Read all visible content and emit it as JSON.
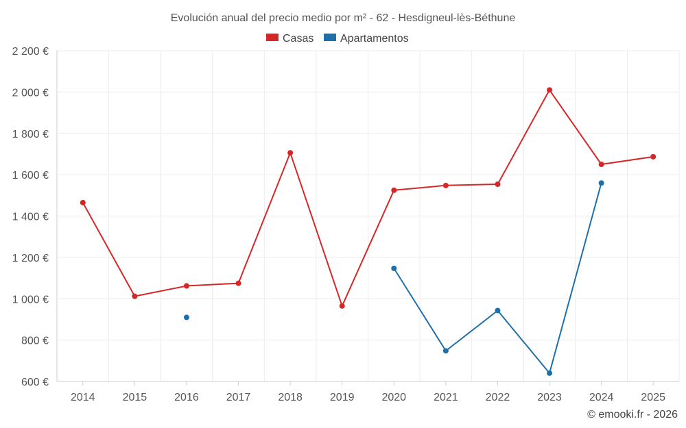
{
  "chart_data": {
    "type": "line",
    "title": "Evolución anual del precio medio por m² - 62 - Hesdigneul-lès-Béthune",
    "categories": [
      "2014",
      "2015",
      "2016",
      "2017",
      "2018",
      "2019",
      "2020",
      "2021",
      "2022",
      "2023",
      "2024",
      "2025"
    ],
    "ylim": [
      600,
      2200
    ],
    "yticks": [
      600,
      800,
      1000,
      1200,
      1400,
      1600,
      1800,
      2000,
      2200
    ],
    "ytick_labels": [
      "600 €",
      "800 €",
      "1 000 €",
      "1 200 €",
      "1 400 €",
      "1 600 €",
      "1 800 €",
      "2 000 €",
      "2 200 €"
    ],
    "grid": true,
    "legend_position": "top-center",
    "series": [
      {
        "name": "Casas",
        "color": "#d62728",
        "values": [
          1465,
          1012,
          1062,
          1075,
          1706,
          965,
          1525,
          1548,
          1554,
          2010,
          1650,
          1687
        ]
      },
      {
        "name": "Apartamentos",
        "color": "#1f6fa8",
        "values": [
          null,
          null,
          910,
          null,
          null,
          null,
          1147,
          748,
          943,
          640,
          1560,
          null
        ]
      }
    ]
  },
  "credit": "© emooki.fr - 2026"
}
